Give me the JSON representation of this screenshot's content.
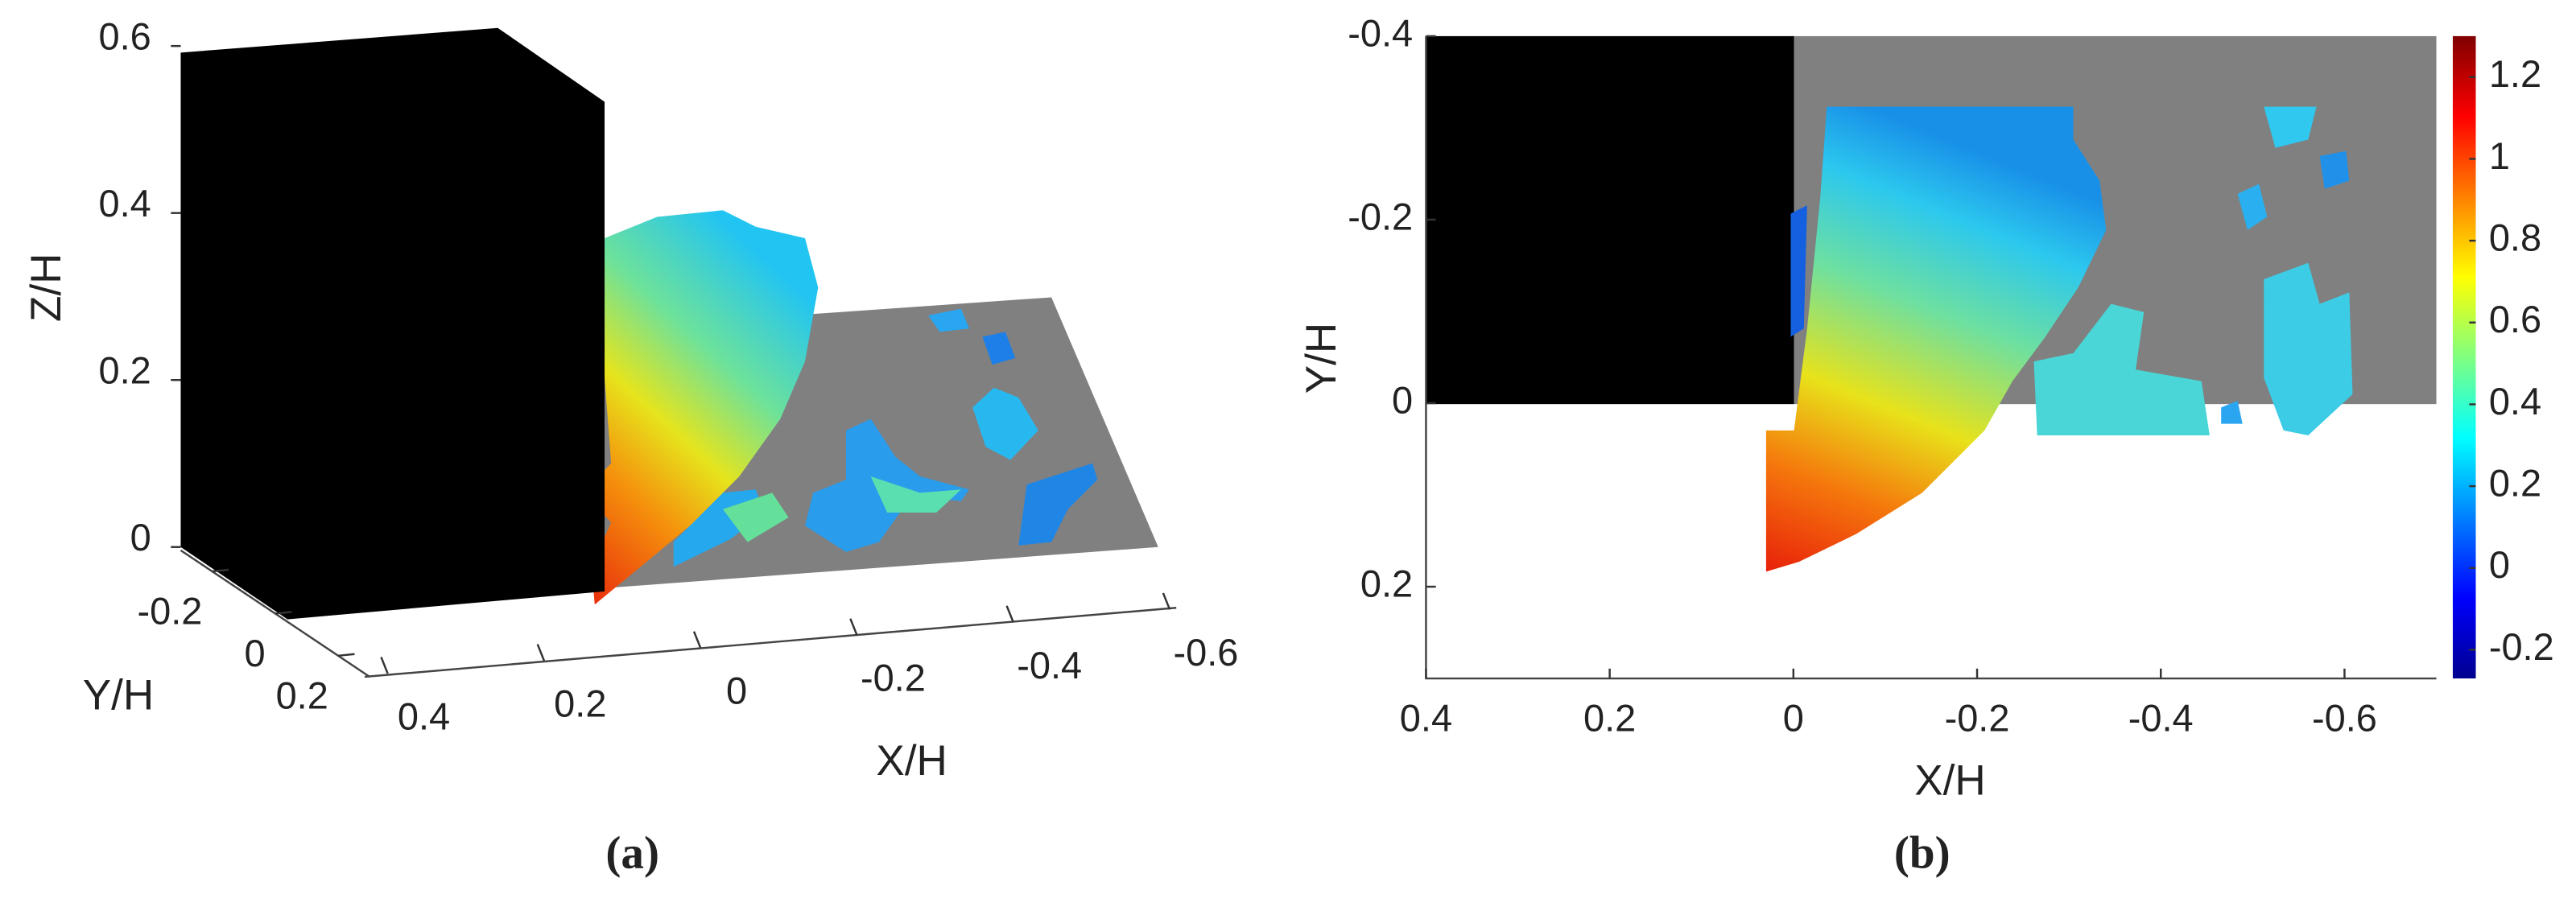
{
  "chart_data": [
    {
      "type": "isosurface3d",
      "caption": "(a)",
      "xlabel": "X/H",
      "ylabel": "Y/H",
      "zlabel": "Z/H",
      "xlim": [
        0.4,
        -0.6
      ],
      "xticks": [
        0.4,
        0.2,
        0,
        -0.2,
        -0.4,
        -0.6
      ],
      "ylim": [
        -0.3,
        0.3
      ],
      "yticks": [
        -0.2,
        0,
        0.2
      ],
      "zlim": [
        0,
        0.6
      ],
      "zticks": [
        0,
        0.2,
        0.4,
        0.6
      ]
    },
    {
      "type": "contour",
      "caption": "(b)",
      "xlabel": "X/H",
      "ylabel": "Y/H",
      "xlim": [
        0.4,
        -0.7
      ],
      "xticks": [
        0.4,
        0.2,
        0,
        -0.2,
        -0.4,
        -0.6
      ],
      "ylim": [
        -0.4,
        0.3
      ],
      "yticks": [
        -0.4,
        -0.2,
        0,
        0.2
      ],
      "colorbar": {
        "lim": [
          -0.27,
          1.3
        ],
        "ticks": [
          -0.2,
          0,
          0.2,
          0.4,
          0.6,
          0.8,
          1,
          1.2
        ],
        "colormap": "jet"
      }
    }
  ]
}
